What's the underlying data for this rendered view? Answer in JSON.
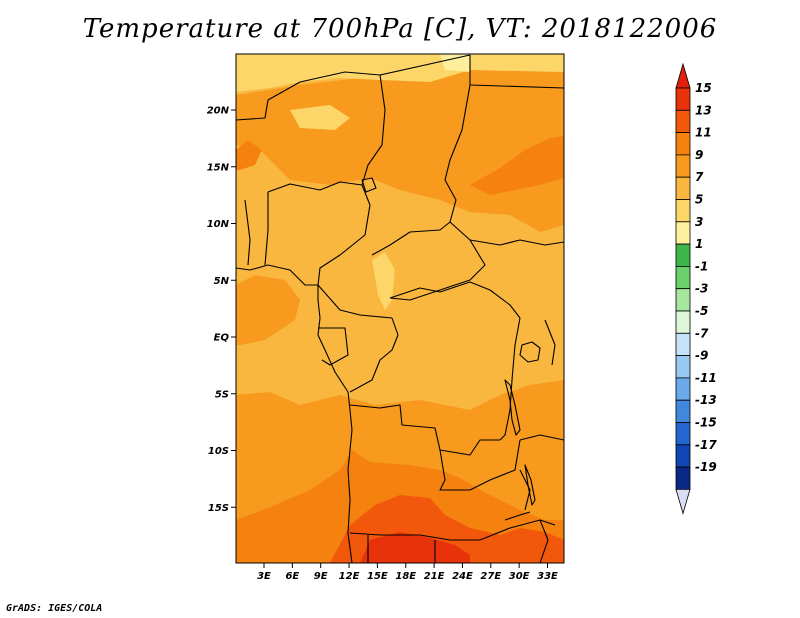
{
  "title": "Temperature at 700hPa [C], VT: 2018122006",
  "credit": "GrADS: IGES/COLA",
  "map": {
    "variable": "Temperature",
    "level": "700hPa",
    "units": "C",
    "valid_time": "2018122006",
    "lat_ticks": [
      {
        "lat": 20,
        "label": "20N"
      },
      {
        "lat": 15,
        "label": "15N"
      },
      {
        "lat": 10,
        "label": "10N"
      },
      {
        "lat": 5,
        "label": "5N"
      },
      {
        "lat": 0,
        "label": "EQ"
      },
      {
        "lat": -5,
        "label": "5S"
      },
      {
        "lat": -10,
        "label": "10S"
      },
      {
        "lat": -15,
        "label": "15S"
      }
    ],
    "lon_ticks": [
      {
        "lon": 3,
        "label": "3E"
      },
      {
        "lon": 6,
        "label": "6E"
      },
      {
        "lon": 9,
        "label": "9E"
      },
      {
        "lon": 12,
        "label": "12E"
      },
      {
        "lon": 15,
        "label": "15E"
      },
      {
        "lon": 18,
        "label": "18E"
      },
      {
        "lon": 21,
        "label": "21E"
      },
      {
        "lon": 24,
        "label": "24E"
      },
      {
        "lon": 27,
        "label": "27E"
      },
      {
        "lon": 30,
        "label": "30E"
      },
      {
        "lon": 33,
        "label": "33E"
      }
    ]
  },
  "colorbar": {
    "levels": [
      {
        "label": "15",
        "color": "#e8330a"
      },
      {
        "label": "13",
        "color": "#f2580b"
      },
      {
        "label": "11",
        "color": "#f5820e"
      },
      {
        "label": "9",
        "color": "#f79a1e"
      },
      {
        "label": "7",
        "color": "#f9b740"
      },
      {
        "label": "5",
        "color": "#fcd668"
      },
      {
        "label": "3",
        "color": "#fdef9c"
      },
      {
        "label": "1",
        "color": "#3cb64b"
      },
      {
        "label": "-1",
        "color": "#6ad06b"
      },
      {
        "label": "-3",
        "color": "#a7e69e"
      },
      {
        "label": "-5",
        "color": "#dff6d9"
      },
      {
        "label": "-7",
        "color": "#c5e2f7"
      },
      {
        "label": "-9",
        "color": "#97c9f2"
      },
      {
        "label": "-11",
        "color": "#6aaaea"
      },
      {
        "label": "-13",
        "color": "#3f88de"
      },
      {
        "label": "-15",
        "color": "#2366d0"
      },
      {
        "label": "-17",
        "color": "#1245b4"
      },
      {
        "label": "-19",
        "color": "#0b2788"
      }
    ],
    "top_color": "#e3200e",
    "bottom_color": "#d9ddf6"
  }
}
